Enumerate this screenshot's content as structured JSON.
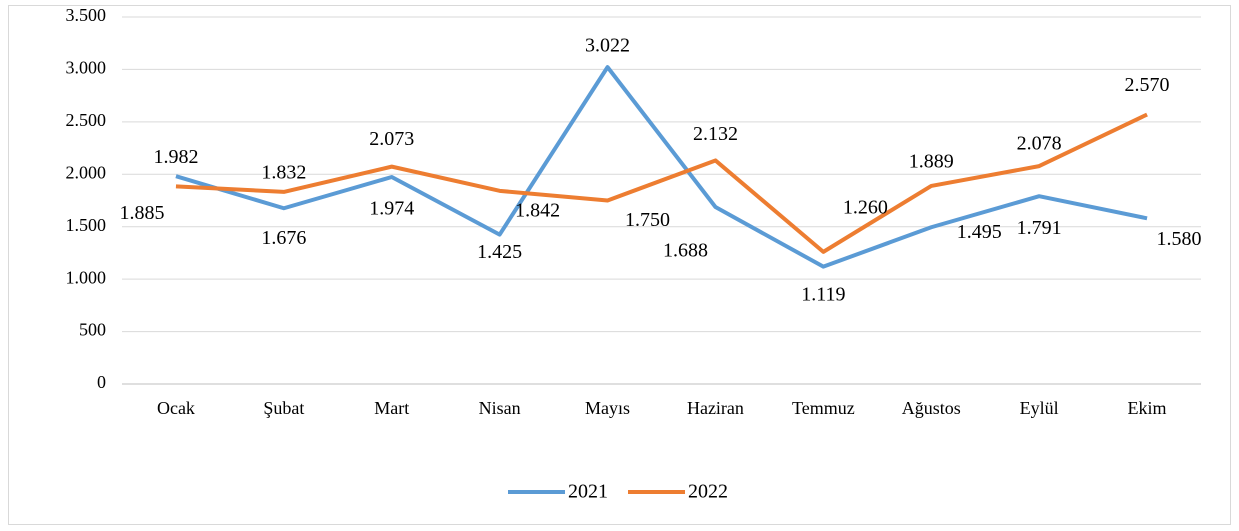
{
  "chart_data": {
    "type": "line",
    "categories": [
      "Ocak",
      "Şubat",
      "Mart",
      "Nisan",
      "Mayıs",
      "Haziran",
      "Temmuz",
      "Ağustos",
      "Eylül",
      "Ekim"
    ],
    "series": [
      {
        "name": "2021",
        "color": "#5b9bd5",
        "values": [
          1982,
          1676,
          1974,
          1425,
          3022,
          1688,
          1119,
          1495,
          1791,
          1580
        ],
        "value_labels": [
          "1.982",
          "1.676",
          "1.974",
          "1.425",
          "3.022",
          "1.688",
          "1.119",
          "1.495",
          "1.791",
          "1.580"
        ]
      },
      {
        "name": "2022",
        "color": "#ed7d31",
        "values": [
          1885,
          1832,
          2073,
          1842,
          1750,
          2132,
          1260,
          1889,
          2078,
          2570
        ],
        "value_labels": [
          "1.885",
          "1.832",
          "2.073",
          "1.842",
          "1.750",
          "2.132",
          "1.260",
          "1.889",
          "2.078",
          "2.570"
        ]
      }
    ],
    "ylim": [
      0,
      3500
    ],
    "yticks": [
      0,
      500,
      {
        "value": 1000,
        "label": "1.000"
      },
      {
        "value": 1500,
        "label": "1.500"
      },
      {
        "value": 2000,
        "label": "2.000"
      },
      {
        "value": 2500,
        "label": "2.500"
      },
      {
        "value": 3000,
        "label": "3.000"
      },
      {
        "value": 3500,
        "label": "3.500"
      }
    ],
    "grid": true,
    "legend": "bottom"
  }
}
